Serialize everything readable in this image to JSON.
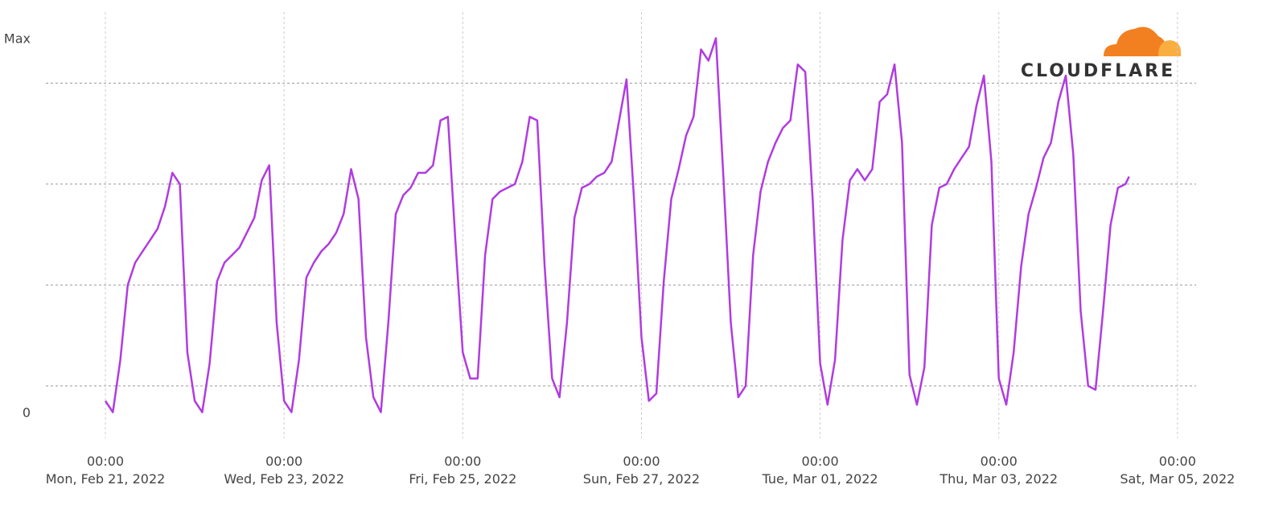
{
  "logo_text": "CLOUDFLARE",
  "chart_data": {
    "type": "line",
    "x": [
      "2022-02-21T00:00",
      "2022-02-21T02:00",
      "2022-02-21T04:00",
      "2022-02-21T06:00",
      "2022-02-21T08:00",
      "2022-02-21T10:00",
      "2022-02-21T12:00",
      "2022-02-21T14:00",
      "2022-02-21T16:00",
      "2022-02-21T18:00",
      "2022-02-21T20:00",
      "2022-02-21T22:00",
      "2022-02-22T00:00",
      "2022-02-22T02:00",
      "2022-02-22T04:00",
      "2022-02-22T06:00",
      "2022-02-22T08:00",
      "2022-02-22T10:00",
      "2022-02-22T12:00",
      "2022-02-22T14:00",
      "2022-02-22T16:00",
      "2022-02-22T18:00",
      "2022-02-22T20:00",
      "2022-02-22T22:00",
      "2022-02-23T00:00",
      "2022-02-23T02:00",
      "2022-02-23T04:00",
      "2022-02-23T06:00",
      "2022-02-23T08:00",
      "2022-02-23T10:00",
      "2022-02-23T12:00",
      "2022-02-23T14:00",
      "2022-02-23T16:00",
      "2022-02-23T18:00",
      "2022-02-23T20:00",
      "2022-02-23T22:00",
      "2022-02-24T00:00",
      "2022-02-24T02:00",
      "2022-02-24T04:00",
      "2022-02-24T06:00",
      "2022-02-24T08:00",
      "2022-02-24T10:00",
      "2022-02-24T12:00",
      "2022-02-24T14:00",
      "2022-02-24T16:00",
      "2022-02-24T18:00",
      "2022-02-24T20:00",
      "2022-02-24T22:00",
      "2022-02-25T00:00",
      "2022-02-25T02:00",
      "2022-02-25T04:00",
      "2022-02-25T06:00",
      "2022-02-25T08:00",
      "2022-02-25T10:00",
      "2022-02-25T12:00",
      "2022-02-25T14:00",
      "2022-02-25T16:00",
      "2022-02-25T18:00",
      "2022-02-25T20:00",
      "2022-02-25T22:00",
      "2022-02-26T00:00",
      "2022-02-26T02:00",
      "2022-02-26T04:00",
      "2022-02-26T06:00",
      "2022-02-26T08:00",
      "2022-02-26T10:00",
      "2022-02-26T12:00",
      "2022-02-26T14:00",
      "2022-02-26T16:00",
      "2022-02-26T18:00",
      "2022-02-26T20:00",
      "2022-02-26T22:00",
      "2022-02-27T00:00",
      "2022-02-27T02:00",
      "2022-02-27T04:00",
      "2022-02-27T06:00",
      "2022-02-27T08:00",
      "2022-02-27T10:00",
      "2022-02-27T12:00",
      "2022-02-27T14:00",
      "2022-02-27T16:00",
      "2022-02-27T18:00",
      "2022-02-27T20:00",
      "2022-02-27T22:00",
      "2022-02-28T00:00",
      "2022-02-28T02:00",
      "2022-02-28T04:00",
      "2022-02-28T06:00",
      "2022-02-28T08:00",
      "2022-02-28T10:00",
      "2022-02-28T12:00",
      "2022-02-28T14:00",
      "2022-02-28T16:00",
      "2022-02-28T18:00",
      "2022-02-28T20:00",
      "2022-02-28T22:00",
      "2022-03-01T00:00",
      "2022-03-01T02:00",
      "2022-03-01T04:00",
      "2022-03-01T06:00",
      "2022-03-01T08:00",
      "2022-03-01T10:00",
      "2022-03-01T12:00",
      "2022-03-01T14:00",
      "2022-03-01T16:00",
      "2022-03-01T18:00",
      "2022-03-01T20:00",
      "2022-03-01T22:00",
      "2022-03-02T00:00",
      "2022-03-02T02:00",
      "2022-03-02T04:00",
      "2022-03-02T06:00",
      "2022-03-02T08:00",
      "2022-03-02T10:00",
      "2022-03-02T12:00",
      "2022-03-02T14:00",
      "2022-03-02T16:00",
      "2022-03-02T18:00",
      "2022-03-02T20:00",
      "2022-03-02T22:00",
      "2022-03-03T00:00",
      "2022-03-03T02:00",
      "2022-03-03T04:00",
      "2022-03-03T06:00",
      "2022-03-03T08:00",
      "2022-03-03T10:00",
      "2022-03-03T12:00",
      "2022-03-03T14:00",
      "2022-03-03T16:00",
      "2022-03-03T18:00",
      "2022-03-03T20:00",
      "2022-03-03T22:00",
      "2022-03-04T00:00",
      "2022-03-04T02:00",
      "2022-03-04T04:00",
      "2022-03-04T06:00",
      "2022-03-04T08:00",
      "2022-03-04T10:00",
      "2022-03-04T11:00"
    ],
    "series": [
      {
        "color": "#b03ce0",
        "values": [
          3,
          0,
          14,
          34,
          40,
          43,
          46,
          49,
          55,
          64,
          61,
          16,
          3,
          0,
          13,
          35,
          40,
          42,
          44,
          48,
          52,
          62,
          66,
          24,
          3,
          0,
          14,
          36,
          40,
          43,
          45,
          48,
          53,
          65,
          57,
          20,
          4,
          0,
          24,
          53,
          58,
          60,
          64,
          64,
          66,
          78,
          79,
          46,
          16,
          9,
          9,
          42,
          57,
          59,
          60,
          61,
          67,
          79,
          78,
          39,
          9,
          4,
          24,
          52,
          60,
          61,
          63,
          64,
          67,
          78,
          89,
          57,
          20,
          3,
          5,
          35,
          57,
          65,
          74,
          79,
          97,
          94,
          100,
          63,
          24,
          4,
          7,
          42,
          59,
          67,
          72,
          76,
          78,
          93,
          91,
          57,
          13,
          2,
          14,
          46,
          62,
          65,
          62,
          65,
          83,
          85,
          93,
          72,
          10,
          2,
          12,
          50,
          60,
          61,
          65,
          68,
          71,
          82,
          90,
          67,
          9,
          2,
          16,
          39,
          53,
          60,
          68,
          72,
          83,
          90,
          69,
          27,
          7,
          6,
          27,
          50,
          60,
          61,
          63
        ]
      }
    ],
    "xlim": [
      "2022-02-20T08:00",
      "2022-03-05T05:00"
    ],
    "xticks": [
      {
        "value": "2022-02-21T00:00",
        "label": [
          "00:00",
          "Mon, Feb 21, 2022"
        ]
      },
      {
        "value": "2022-02-23T00:00",
        "label": [
          "00:00",
          "Wed, Feb 23, 2022"
        ]
      },
      {
        "value": "2022-02-25T00:00",
        "label": [
          "00:00",
          "Fri, Feb 25, 2022"
        ]
      },
      {
        "value": "2022-02-27T00:00",
        "label": [
          "00:00",
          "Sun, Feb 27, 2022"
        ]
      },
      {
        "value": "2022-03-01T00:00",
        "label": [
          "00:00",
          "Tue, Mar 01, 2022"
        ]
      },
      {
        "value": "2022-03-03T00:00",
        "label": [
          "00:00",
          "Thu, Mar 03, 2022"
        ]
      },
      {
        "value": "2022-03-05T00:00",
        "label": [
          "00:00",
          "Sat, Mar 05, 2022"
        ]
      }
    ],
    "ylim": [
      -7,
      107
    ],
    "yticks": [
      {
        "value": 0,
        "label": "0"
      },
      {
        "value": 100,
        "label": "Max"
      }
    ],
    "ygrid": [
      7,
      34,
      61,
      88
    ],
    "grid": true
  }
}
